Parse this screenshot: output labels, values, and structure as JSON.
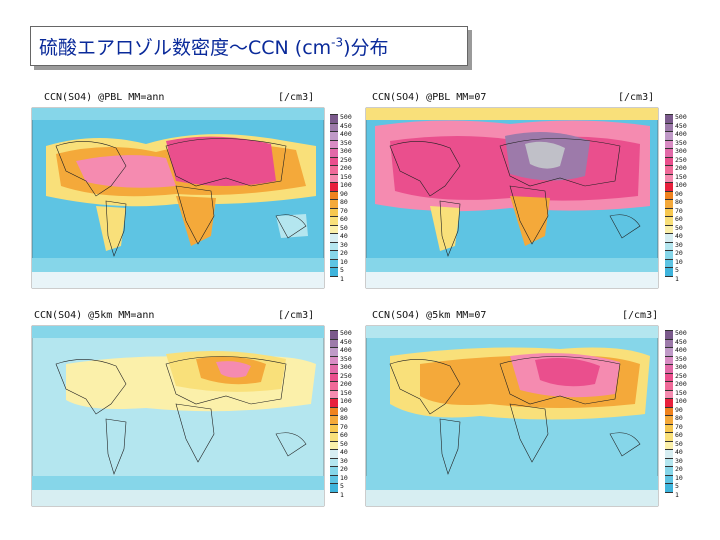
{
  "title": {
    "main": "硫酸エアロゾル数密度～CCN (cm",
    "exp": "-3",
    "tail": ")分布"
  },
  "panels": [
    {
      "label": "CCN(SO4) @PBL MM=ann",
      "unit": "[/cm3]",
      "id": "p1"
    },
    {
      "label": "CCN(SO4) @PBL MM=07",
      "unit": "[/cm3]",
      "id": "p2"
    },
    {
      "label": "CCN(SO4) @5km MM=ann",
      "unit": "[/cm3]",
      "id": "p3"
    },
    {
      "label": "CCN(SO4) @5km MM=07",
      "unit": "[/cm3]",
      "id": "p4"
    }
  ],
  "colorbar": {
    "ticks": [
      "500",
      "450",
      "400",
      "350",
      "300",
      "250",
      "200",
      "150",
      "100",
      "90",
      "80",
      "70",
      "60",
      "50",
      "40",
      "30",
      "20",
      "10",
      "5",
      "1"
    ],
    "colors": [
      "#7b5a8c",
      "#9d7aaa",
      "#c09ac8",
      "#d98cc4",
      "#e26aa8",
      "#ea4f8d",
      "#f06a99",
      "#f58bb0",
      "#e8203c",
      "#f0831e",
      "#f4a93a",
      "#f7c850",
      "#f9e07a",
      "#fbf0aa",
      "#d7eef2",
      "#b4e6ef",
      "#86d6e9",
      "#5ec4e3",
      "#3eb4dc",
      "#ffffff"
    ]
  }
}
